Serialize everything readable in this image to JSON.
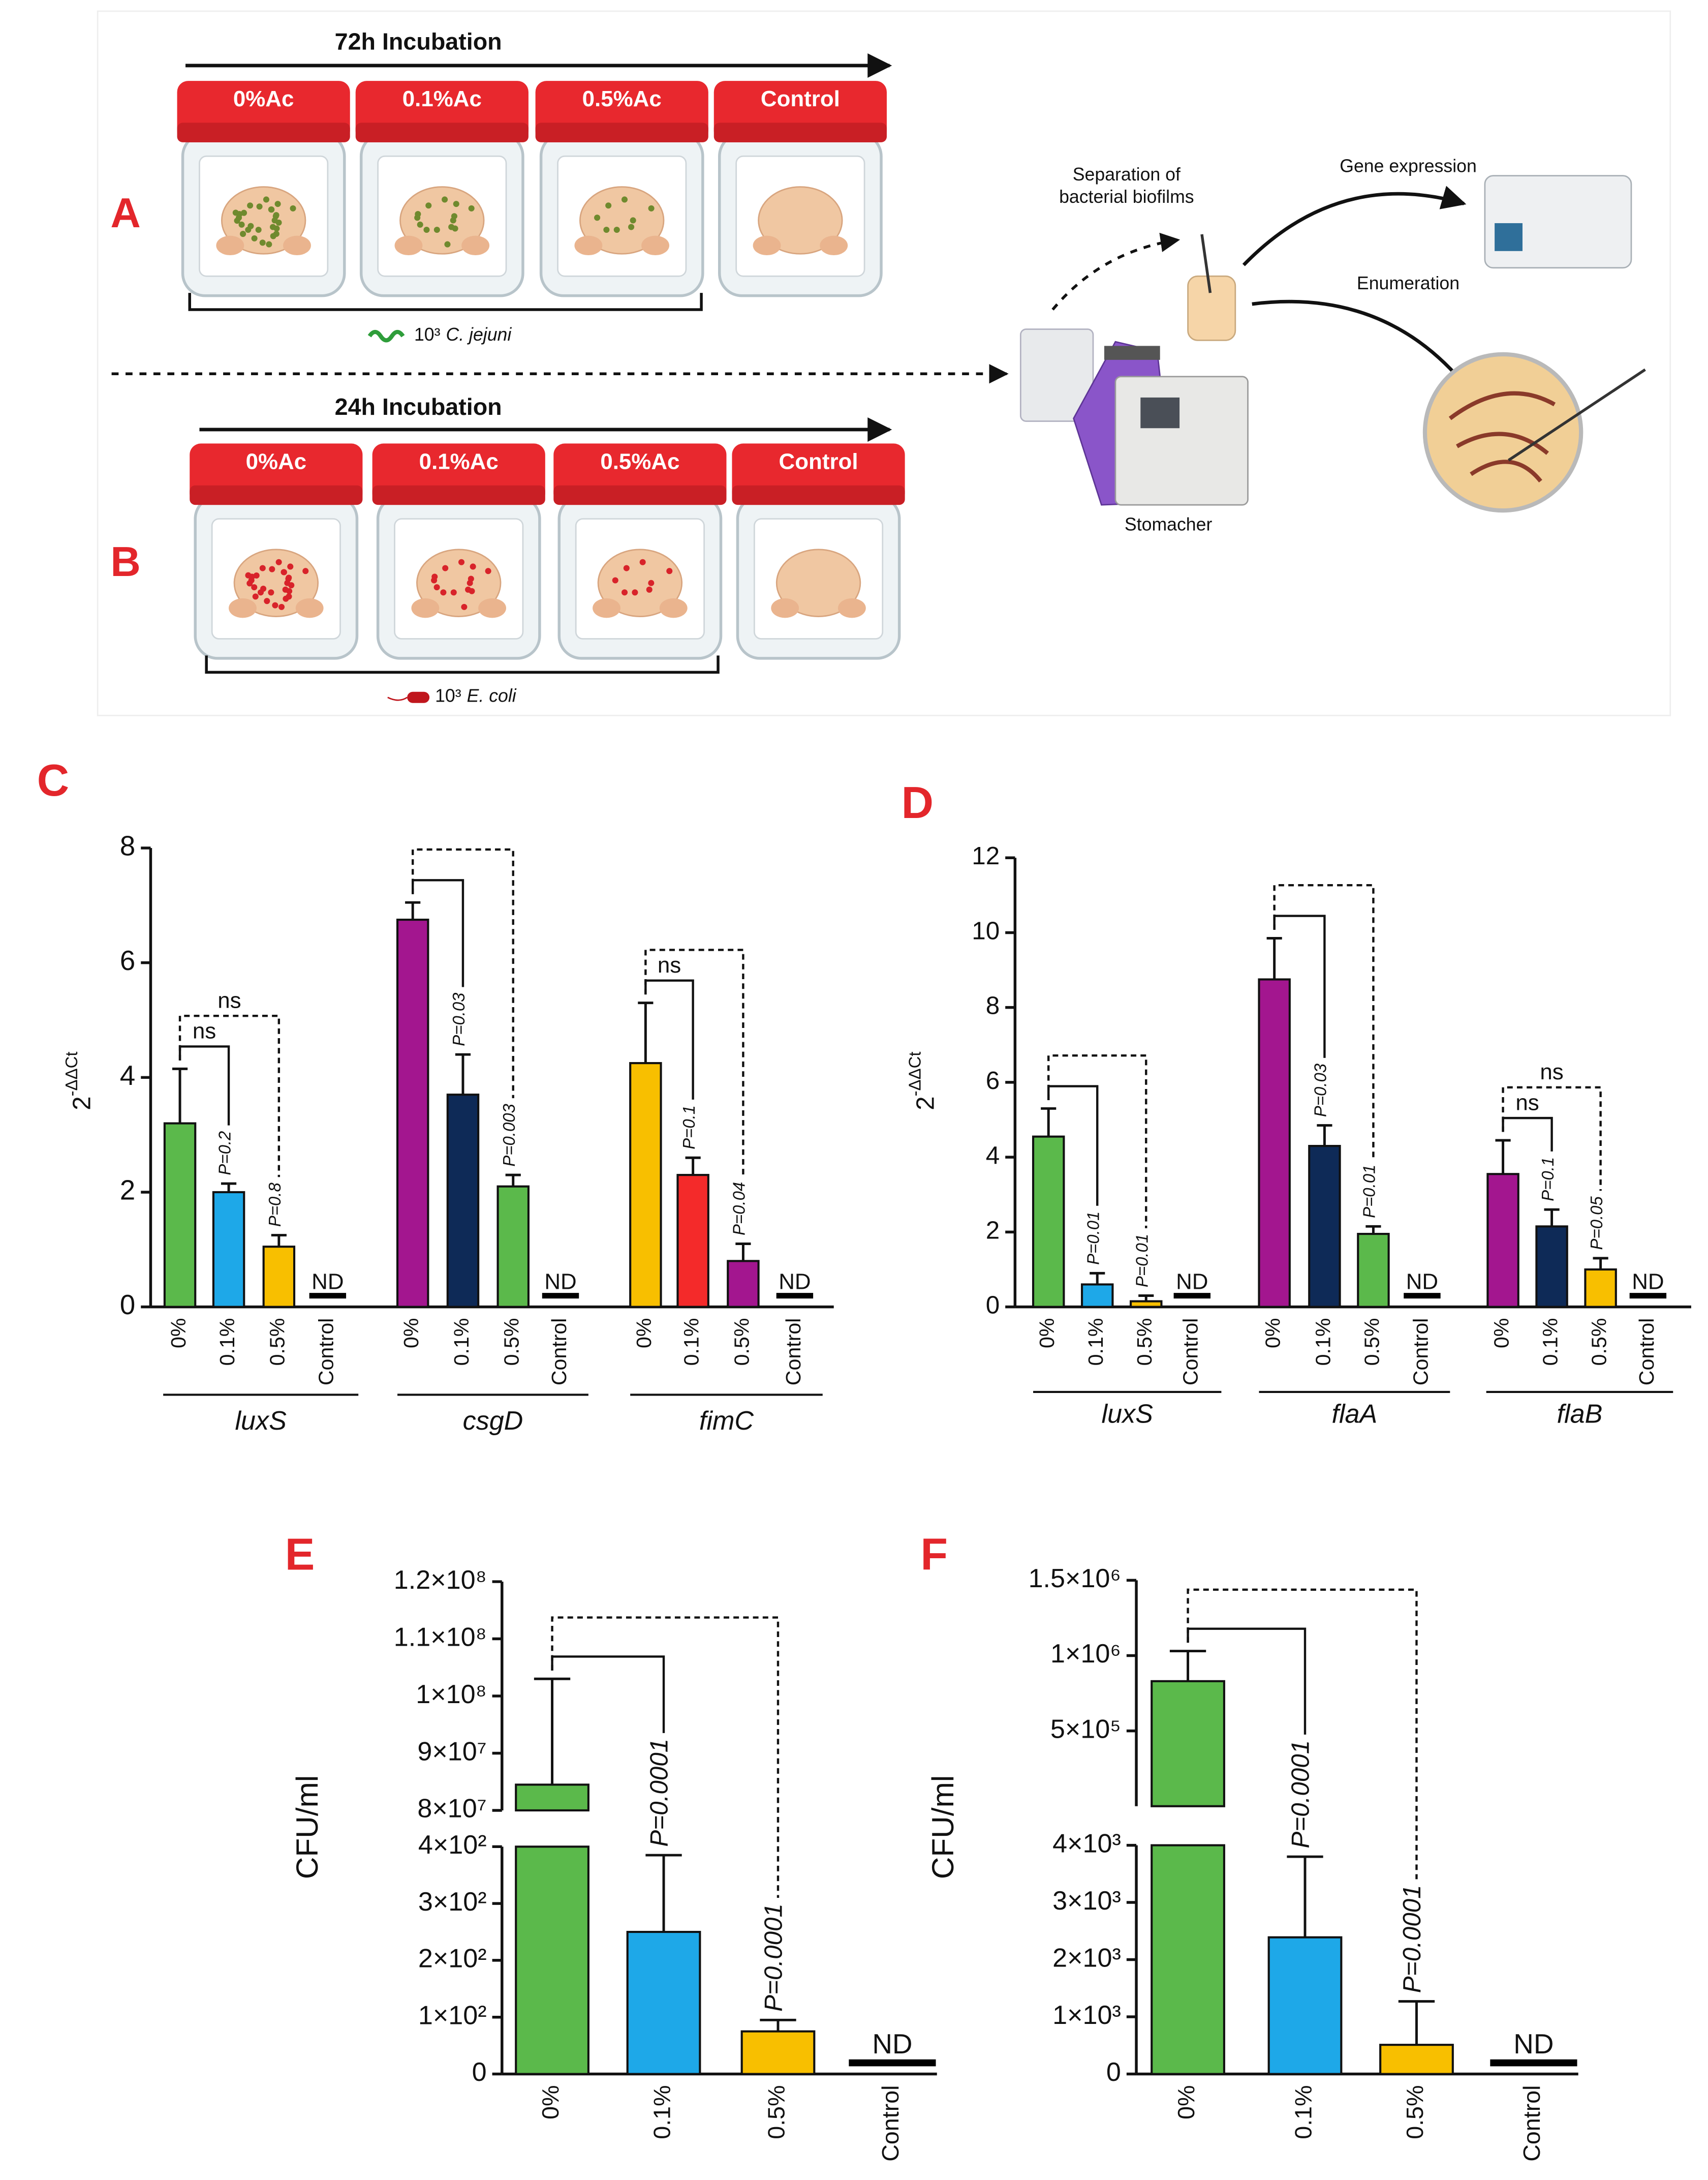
{
  "schematic": {
    "a": {
      "label": "A",
      "title": "72h Incubation",
      "jars": [
        "0%Ac",
        "0.1%Ac",
        "0.5%Ac",
        "Control"
      ],
      "inoculum": {
        "dose": "10³",
        "organism": "C. jejuni"
      }
    },
    "b": {
      "label": "B",
      "title": "24h Incubation",
      "jars": [
        "0%Ac",
        "0.1%Ac",
        "0.5%Ac",
        "Control"
      ],
      "inoculum": {
        "dose": "10³",
        "organism": "E. coli"
      }
    },
    "process": {
      "separation": [
        "Separation of",
        "bacterial biofilms"
      ],
      "gene_expression": "Gene expression",
      "enumeration": "Enumeration",
      "stomacher": "Stomacher"
    }
  },
  "chart_data": [
    {
      "type": "grouped_bar",
      "label": "C",
      "ylabel": {
        "base": "2",
        "exponent": "-ΔΔCt"
      },
      "ylim": [
        0,
        8
      ],
      "yticks": [
        0,
        2,
        4,
        6,
        8
      ],
      "categories": [
        "0%",
        "0.1%",
        "0.5%",
        "Control"
      ],
      "groups": [
        {
          "name": "luxS",
          "values": [
            3.2,
            2.0,
            1.05,
            null
          ],
          "errors": [
            0.95,
            0.15,
            0.2,
            null
          ],
          "value_labels": [
            null,
            null,
            null,
            "ND"
          ],
          "colors": [
            "#5bb94b",
            "#1ea8e8",
            "#f8bf00",
            "#000000"
          ],
          "p_values": {
            "1": "P=0.2",
            "2": "P=0.8"
          },
          "brackets": [
            {
              "to": 1,
              "style": "solid",
              "label": "ns"
            },
            {
              "to": 2,
              "style": "dashed",
              "label": "ns"
            }
          ]
        },
        {
          "name": "csgD",
          "values": [
            6.75,
            3.7,
            2.1,
            null
          ],
          "errors": [
            0.3,
            0.7,
            0.2,
            null
          ],
          "value_labels": [
            null,
            null,
            null,
            "ND"
          ],
          "colors": [
            "#a3168f",
            "#0e2a57",
            "#5bb94b",
            "#000000"
          ],
          "p_values": {
            "1": "P=0.03",
            "2": "P=0.003"
          },
          "brackets": [
            {
              "to": 1,
              "style": "solid"
            },
            {
              "to": 2,
              "style": "dashed"
            }
          ]
        },
        {
          "name": "fimC",
          "values": [
            4.25,
            2.3,
            0.8,
            null
          ],
          "errors": [
            1.05,
            0.3,
            0.3,
            null
          ],
          "value_labels": [
            null,
            null,
            null,
            "ND"
          ],
          "colors": [
            "#f8bf00",
            "#f42a2a",
            "#a3168f",
            "#000000"
          ],
          "p_values": {
            "1": "P=0.1",
            "2": "P=0.04"
          },
          "brackets": [
            {
              "to": 1,
              "style": "solid",
              "label": "ns"
            },
            {
              "to": 2,
              "style": "dashed"
            }
          ]
        }
      ]
    },
    {
      "type": "grouped_bar",
      "label": "D",
      "ylabel": {
        "base": "2",
        "exponent": "-ΔΔCt"
      },
      "ylim": [
        0,
        12
      ],
      "yticks": [
        0,
        2,
        4,
        6,
        8,
        10,
        12
      ],
      "categories": [
        "0%",
        "0.1%",
        "0.5%",
        "Control"
      ],
      "groups": [
        {
          "name": "luxS",
          "values": [
            4.55,
            0.6,
            0.15,
            null
          ],
          "errors": [
            0.75,
            0.3,
            0.15,
            null
          ],
          "value_labels": [
            null,
            null,
            null,
            "ND"
          ],
          "colors": [
            "#5bb94b",
            "#1ea8e8",
            "#f8bf00",
            "#000000"
          ],
          "p_values": {
            "1": "P=0.01",
            "2": "P=0.01"
          },
          "brackets": [
            {
              "to": 1,
              "style": "solid"
            },
            {
              "to": 2,
              "style": "dashed"
            }
          ]
        },
        {
          "name": "flaA",
          "values": [
            8.75,
            4.3,
            1.95,
            null
          ],
          "errors": [
            1.1,
            0.55,
            0.2,
            null
          ],
          "value_labels": [
            null,
            null,
            null,
            "ND"
          ],
          "colors": [
            "#a3168f",
            "#0e2a57",
            "#5bb94b",
            "#000000"
          ],
          "p_values": {
            "1": "P=0.03",
            "2": "P=0.01"
          },
          "brackets": [
            {
              "to": 1,
              "style": "solid"
            },
            {
              "to": 2,
              "style": "dashed"
            }
          ]
        },
        {
          "name": "flaB",
          "values": [
            3.55,
            2.15,
            1.0,
            null
          ],
          "errors": [
            0.9,
            0.45,
            0.3,
            null
          ],
          "value_labels": [
            null,
            null,
            null,
            "ND"
          ],
          "colors": [
            "#a3168f",
            "#0e2a57",
            "#f8bf00",
            "#000000"
          ],
          "p_values": {
            "1": "P=0.1",
            "2": "P=0.05"
          },
          "brackets": [
            {
              "to": 1,
              "style": "solid",
              "label": "ns"
            },
            {
              "to": 2,
              "style": "dashed",
              "label": "ns"
            }
          ]
        }
      ]
    },
    {
      "type": "broken_bar",
      "label": "E",
      "ylabel": "CFU/ml",
      "segments": [
        {
          "ylim": [
            0,
            400
          ],
          "yticks": [
            0,
            {
              "value": 100,
              "label": "1×10²"
            },
            {
              "value": 200,
              "label": "2×10²"
            },
            {
              "value": 300,
              "label": "3×10²"
            },
            {
              "value": 400,
              "label": "4×10²"
            }
          ]
        },
        {
          "ylim": [
            80000000,
            120000000
          ],
          "yticks": [
            {
              "value": 80000000,
              "label": "8×10⁷"
            },
            {
              "value": 90000000,
              "label": "9×10⁷"
            },
            {
              "value": 100000000,
              "label": "1×10⁸"
            },
            {
              "value": 110000000,
              "label": "1.1×10⁸"
            },
            {
              "value": 120000000,
              "label": "1.2×10⁸"
            }
          ]
        }
      ],
      "categories": [
        "0%",
        "0.1%",
        "0.5%",
        "Control"
      ],
      "values": [
        84500000,
        250,
        75,
        null
      ],
      "errors": [
        18500000,
        135,
        20,
        null
      ],
      "value_labels": [
        null,
        null,
        null,
        "ND"
      ],
      "colors": [
        "#5bb94b",
        "#1ea8e8",
        "#f8bf00",
        "#000000"
      ],
      "p_values": {
        "1": "P=0.0001",
        "2": "P=0.0001"
      },
      "brackets": [
        {
          "to": 1,
          "style": "solid"
        },
        {
          "to": 2,
          "style": "dashed"
        }
      ]
    },
    {
      "type": "broken_bar",
      "label": "F",
      "ylabel": "CFU/ml",
      "segments": [
        {
          "ylim": [
            0,
            4000
          ],
          "yticks": [
            0,
            {
              "value": 1000,
              "label": "1×10³"
            },
            {
              "value": 2000,
              "label": "2×10³"
            },
            {
              "value": 3000,
              "label": "3×10³"
            },
            {
              "value": 4000,
              "label": "4×10³"
            }
          ]
        },
        {
          "ylim": [
            0,
            1500000
          ],
          "yticks": [
            {
              "value": 500000,
              "label": "5×10⁵"
            },
            {
              "value": 1000000,
              "label": "1×10⁶"
            },
            {
              "value": 1500000,
              "label": "1.5×10⁶"
            }
          ]
        }
      ],
      "categories": [
        "0%",
        "0.1%",
        "0.5%",
        "Control"
      ],
      "values": [
        830000,
        2390,
        510,
        null
      ],
      "errors": [
        200000,
        1410,
        760,
        null
      ],
      "value_labels": [
        null,
        null,
        null,
        "ND"
      ],
      "colors": [
        "#5bb94b",
        "#1ea8e8",
        "#f8bf00",
        "#000000"
      ],
      "p_values": {
        "1": "P=0.0001",
        "2": "P=0.0001"
      },
      "brackets": [
        {
          "to": 1,
          "style": "solid"
        },
        {
          "to": 2,
          "style": "dashed"
        }
      ]
    }
  ]
}
